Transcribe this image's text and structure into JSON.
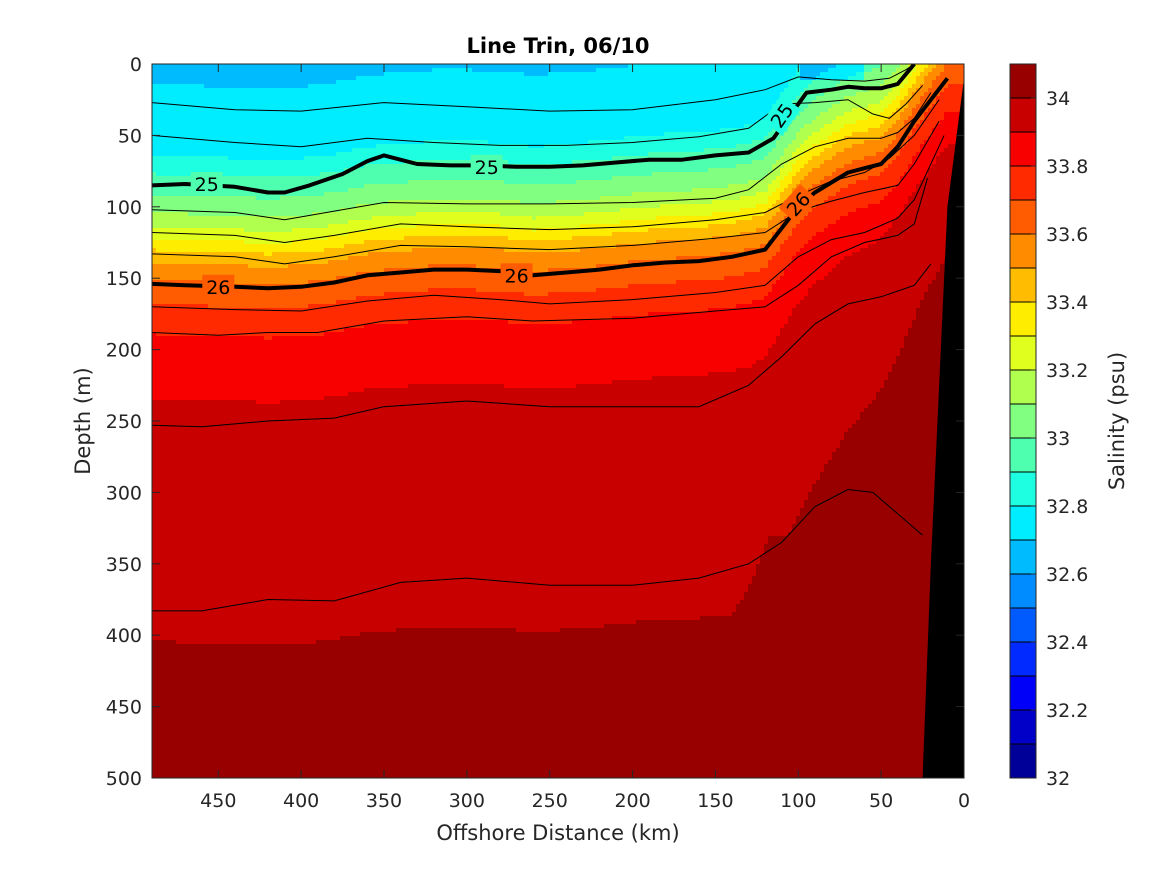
{
  "chart_data": {
    "type": "contourf",
    "title": "Line Trin, 06/10",
    "xlabel": "Offshore Distance (km)",
    "ylabel": "Depth (m)",
    "xlim": [
      490,
      0
    ],
    "ylim": [
      0,
      500
    ],
    "x_reversed": true,
    "y_reversed": true,
    "xticks": [
      450,
      400,
      350,
      300,
      250,
      200,
      150,
      100,
      50,
      0
    ],
    "yticks": [
      0,
      50,
      100,
      150,
      200,
      250,
      300,
      350,
      400,
      450,
      500
    ],
    "colorbar": {
      "label": "Salinity (psu)",
      "limits": [
        32.0,
        34.1
      ],
      "levels": [
        32.0,
        32.1,
        32.2,
        32.3,
        32.4,
        32.5,
        32.6,
        32.7,
        32.8,
        32.9,
        33.0,
        33.1,
        33.2,
        33.3,
        33.4,
        33.5,
        33.6,
        33.7,
        33.8,
        33.9,
        34.0
      ],
      "ticks": [
        32,
        32.2,
        32.4,
        32.6,
        32.8,
        33,
        33.2,
        33.4,
        33.6,
        33.8,
        34
      ],
      "colormap": "jet"
    },
    "salinity_profile_depths": [
      0,
      10,
      20,
      30,
      40,
      50,
      60,
      70,
      80,
      90,
      100,
      110,
      120,
      130,
      140,
      150,
      160,
      170,
      180,
      190,
      200,
      220,
      240,
      260,
      280,
      300,
      350,
      400,
      450,
      500
    ],
    "salinity_profile_values": [
      32.68,
      32.7,
      32.72,
      32.74,
      32.76,
      32.78,
      32.8,
      32.88,
      32.95,
      33.02,
      33.1,
      33.2,
      33.32,
      33.45,
      33.55,
      33.62,
      33.68,
      33.73,
      33.78,
      33.82,
      33.86,
      33.89,
      33.91,
      33.93,
      33.95,
      33.96,
      33.98,
      34.0,
      34.04,
      34.06
    ],
    "density_contours": [
      {
        "label": "25",
        "bold": true,
        "x": [
          490,
          470,
          440,
          420,
          410,
          395,
          375,
          360,
          350,
          330,
          310,
          290,
          270,
          250,
          230,
          210,
          190,
          170,
          150,
          130,
          115,
          105,
          95,
          80,
          70,
          60,
          50,
          40,
          35,
          30
        ],
        "y": [
          85,
          84,
          86,
          90,
          90,
          85,
          77,
          68,
          64,
          70,
          71,
          71,
          72,
          72,
          71,
          69,
          67,
          67,
          64,
          62,
          52,
          36,
          20,
          18,
          16,
          17,
          17,
          14,
          7,
          0
        ]
      },
      {
        "label": "26",
        "bold": true,
        "x": [
          490,
          470,
          440,
          420,
          400,
          380,
          360,
          340,
          320,
          300,
          280,
          260,
          240,
          220,
          200,
          180,
          160,
          140,
          120,
          110,
          100,
          90,
          80,
          70,
          60,
          50,
          40,
          30,
          20,
          10
        ],
        "y": [
          154,
          155,
          156,
          157,
          156,
          153,
          148,
          146,
          144,
          144,
          145,
          148,
          146,
          144,
          141,
          139,
          138,
          135,
          130,
          115,
          100,
          90,
          83,
          76,
          73,
          70,
          58,
          40,
          25,
          10
        ]
      }
    ],
    "thin_contours": [
      {
        "x": [
          490,
          440,
          400,
          350,
          300,
          250,
          200,
          150,
          120,
          100,
          80,
          60,
          45,
          35,
          30
        ],
        "y": [
          27,
          32,
          33,
          27,
          30,
          33,
          32,
          25,
          18,
          9,
          11,
          12,
          10,
          4,
          0
        ]
      },
      {
        "x": [
          490,
          440,
          400,
          360,
          320,
          280,
          240,
          200,
          160,
          130,
          110,
          90,
          70,
          55,
          45,
          35,
          25
        ],
        "y": [
          50,
          55,
          58,
          52,
          55,
          57,
          57,
          55,
          51,
          45,
          28,
          27,
          25,
          35,
          38,
          28,
          15
        ]
      },
      {
        "x": [
          490,
          440,
          410,
          380,
          350,
          300,
          250,
          200,
          150,
          130,
          110,
          90,
          70,
          50,
          40,
          30,
          20
        ],
        "y": [
          102,
          104,
          109,
          103,
          97,
          98,
          98,
          97,
          94,
          88,
          70,
          58,
          52,
          52,
          48,
          38,
          20
        ]
      },
      {
        "x": [
          490,
          440,
          410,
          380,
          340,
          300,
          250,
          200,
          150,
          120,
          100,
          80,
          60,
          45,
          30,
          15
        ],
        "y": [
          118,
          120,
          125,
          120,
          112,
          114,
          116,
          114,
          109,
          104,
          92,
          82,
          76,
          66,
          50,
          25
        ]
      },
      {
        "x": [
          490,
          440,
          410,
          380,
          340,
          300,
          250,
          200,
          150,
          120,
          100,
          80,
          60,
          40,
          30,
          15
        ],
        "y": [
          133,
          135,
          140,
          135,
          127,
          128,
          130,
          127,
          122,
          118,
          103,
          96,
          90,
          85,
          70,
          40
        ]
      },
      {
        "x": [
          490,
          440,
          400,
          360,
          320,
          280,
          250,
          200,
          150,
          120,
          100,
          80,
          60,
          40,
          30,
          12
        ],
        "y": [
          170,
          172,
          173,
          166,
          162,
          165,
          168,
          165,
          160,
          155,
          135,
          123,
          118,
          108,
          95,
          50
        ]
      },
      {
        "x": [
          490,
          450,
          420,
          390,
          350,
          300,
          260,
          200,
          150,
          120,
          100,
          80,
          60,
          40,
          30,
          22
        ],
        "y": [
          188,
          190,
          188,
          188,
          180,
          177,
          180,
          178,
          173,
          170,
          155,
          135,
          125,
          120,
          112,
          80
        ]
      },
      {
        "x": [
          490,
          460,
          420,
          380,
          350,
          300,
          250,
          200,
          160,
          130,
          110,
          90,
          70,
          50,
          30,
          20
        ],
        "y": [
          253,
          254,
          250,
          248,
          240,
          236,
          240,
          240,
          240,
          225,
          205,
          182,
          168,
          163,
          155,
          140
        ]
      },
      {
        "x": [
          490,
          460,
          420,
          380,
          340,
          300,
          250,
          200,
          160,
          130,
          110,
          90,
          70,
          55,
          40,
          25
        ],
        "y": [
          383,
          383,
          375,
          376,
          363,
          360,
          365,
          365,
          360,
          350,
          335,
          310,
          298,
          300,
          315,
          330
        ]
      }
    ],
    "contour_labels": [
      {
        "text": "25",
        "x": 457,
        "y": 84,
        "angle": 0
      },
      {
        "text": "25",
        "x": 288,
        "y": 72,
        "angle": 0
      },
      {
        "text": "25",
        "x": 110,
        "y": 36,
        "angle": -55
      },
      {
        "text": "26",
        "x": 450,
        "y": 156,
        "angle": 0
      },
      {
        "text": "26",
        "x": 270,
        "y": 148,
        "angle": 0
      },
      {
        "text": "26",
        "x": 100,
        "y": 98,
        "angle": -48
      }
    ],
    "seafloor": {
      "x": [
        0,
        0,
        25
      ],
      "y": [
        0,
        500,
        500
      ],
      "top_x": [
        0,
        10,
        20,
        25
      ],
      "top_y": [
        10,
        100,
        350,
        500
      ],
      "color": "#000000"
    }
  }
}
